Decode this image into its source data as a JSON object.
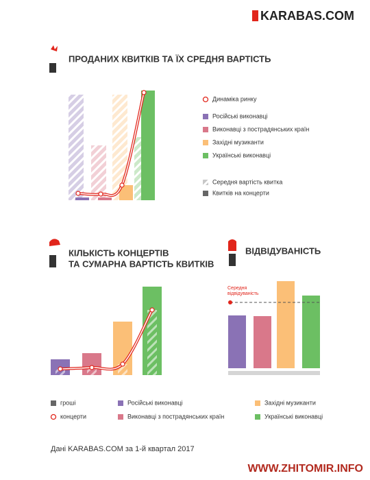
{
  "header": {
    "logo": "KARABAS.COM"
  },
  "chart_data": [
    {
      "type": "bar",
      "title": [
        "ПРОДАНИХ КВИТКІВ ТА ЇХ СРЕДНЯ ВАРТІСТЬ"
      ],
      "categories": [
        "Російські виконавці",
        "Виконавці з пострадянських країн",
        "Західні музиканти",
        "Українські виконавці"
      ],
      "colors": [
        "#8a72b5",
        "#d9788a",
        "#fbbf77",
        "#6cbf63"
      ],
      "series": [
        {
          "name": "Динаміка ринку",
          "style": "line",
          "color": "#e1251b",
          "values": [
            10,
            9,
            22,
            157
          ]
        },
        {
          "name": "Середня вартість квитка",
          "style": "hatch",
          "color": "#c8c8c8",
          "values": [
            154,
            80,
            154,
            92
          ]
        },
        {
          "name": "Квитків на концерти",
          "style": "solid",
          "color": "#666666",
          "values": [
            4,
            4,
            22,
            160
          ]
        }
      ]
    },
    {
      "type": "bar",
      "title": [
        "КІЛЬКІСТЬ КОНЦЕРТІВ",
        "ТА СУМАРНА ВАРТІСТЬ КВИТКІВ"
      ],
      "categories": [
        "Російські виконавці",
        "Виконавці з пострадянських країн",
        "Західні музиканти",
        "Українські виконавці"
      ],
      "colors": [
        "#8a72b5",
        "#d9788a",
        "#fbbf77",
        "#6cbf63"
      ],
      "series": [
        {
          "name": "гроші",
          "style": "solid",
          "color": "#666666",
          "values": [
            23,
            32,
            78,
            129
          ]
        },
        {
          "name": "концерти",
          "style": "line",
          "color": "#e1251b",
          "values": [
            9,
            11,
            16,
            95
          ]
        }
      ]
    },
    {
      "type": "bar",
      "title": [
        "ВІДВІДУВАНІСТЬ"
      ],
      "colors": [
        "#8a72b5",
        "#d9788a",
        "#fbbf77",
        "#6cbf63"
      ],
      "values": [
        77,
        76,
        127,
        106
      ],
      "average": {
        "label": [
          "Середня",
          "відвідуваність"
        ],
        "value": 96,
        "color": "#e1251b"
      }
    }
  ],
  "footer": {
    "source": "Дані KARABAS.COM за 1-й квартал 2017",
    "watermark": "WWW.ZHITOMIR.INFO"
  }
}
